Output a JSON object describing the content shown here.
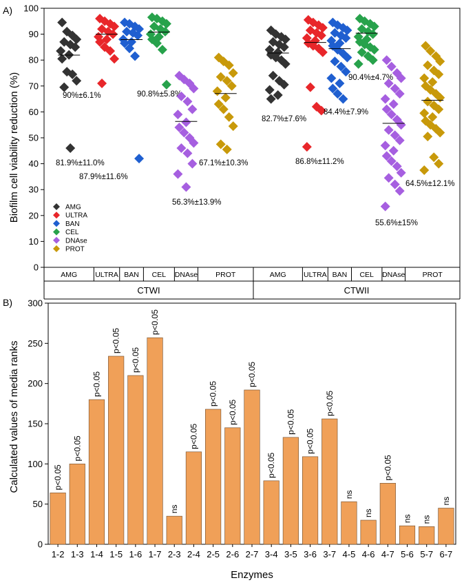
{
  "chart_data": [
    {
      "panel": "A)",
      "type": "scatter",
      "ylabel": "Biofilm cell viability reduction (%)",
      "ylim": [
        0,
        100
      ],
      "yticks": [
        0,
        10,
        20,
        30,
        40,
        50,
        60,
        70,
        80,
        90,
        100
      ],
      "legend": {
        "position": "bottom-left",
        "entries": [
          {
            "name": "AMG",
            "color": "#333333"
          },
          {
            "name": "ULTRA",
            "color": "#e8262a"
          },
          {
            "name": "BAN",
            "color": "#1f5fd0"
          },
          {
            "name": "CEL",
            "color": "#27a24b"
          },
          {
            "name": "DNAse",
            "color": "#a65fe0"
          },
          {
            "name": "PROT",
            "color": "#c8990a"
          }
        ]
      },
      "groups": [
        {
          "name": "CTWI",
          "categories": [
            {
              "label": "AMG",
              "color": "#333333",
              "mean": 81.9,
              "annotation": "81.9%±11.0%",
              "values": [
                94.5,
                91,
                89.5,
                88,
                87,
                86,
                85,
                83.5,
                82,
                80.5,
                75.5,
                74.5,
                72,
                69.5,
                46
              ]
            },
            {
              "label": "ULTRA",
              "color": "#e8262a",
              "mean": 90,
              "annotation": "90%±6.1%",
              "values": [
                96,
                95,
                94,
                93,
                92,
                91,
                90,
                89,
                88,
                87,
                85,
                83.5,
                80.5,
                71
              ]
            },
            {
              "label": "BAN",
              "color": "#1f5fd0",
              "mean": 87.9,
              "annotation": "87.9%±11.6%",
              "values": [
                94.5,
                94,
                93,
                92,
                91,
                90.5,
                89.5,
                88,
                87,
                86.5,
                84.5,
                81.5,
                42
              ]
            },
            {
              "label": "CEL",
              "color": "#27a24b",
              "mean": 90.8,
              "annotation": "90.8%±5.8%",
              "values": [
                96.5,
                96,
                95,
                94,
                93,
                92,
                91,
                90,
                89,
                88,
                86.5,
                84,
                70.5
              ]
            },
            {
              "label": "DNAse",
              "color": "#a65fe0",
              "mean": 56.3,
              "annotation": "56.3%±13.9%",
              "values": [
                74,
                72.5,
                71,
                69,
                66,
                64,
                61,
                59,
                56,
                54,
                52,
                50,
                48,
                46,
                44,
                40,
                36,
                31
              ]
            },
            {
              "label": "PROT",
              "color": "#c8990a",
              "mean": 67.1,
              "annotation": "67.1%±10.3%",
              "values": [
                81,
                79.5,
                78,
                75,
                73.5,
                72,
                70,
                68,
                65.5,
                63,
                61,
                58,
                54.5,
                47.5,
                45.5
              ]
            }
          ]
        },
        {
          "name": "CTWII",
          "categories": [
            {
              "label": "AMG",
              "color": "#333333",
              "mean": 82.7,
              "annotation": "82.7%±7.6%",
              "values": [
                91.5,
                90,
                89,
                88,
                87,
                86,
                85,
                84,
                83,
                82,
                81,
                80,
                78.5,
                74,
                72,
                70.5,
                68.5,
                66.5,
                65
              ]
            },
            {
              "label": "ULTRA",
              "color": "#e8262a",
              "mean": 86.8,
              "annotation": "86.8%±11.2%",
              "values": [
                95.5,
                94.5,
                93.5,
                92.5,
                91.5,
                90.5,
                89.5,
                88.5,
                87.5,
                86.5,
                85.5,
                84.5,
                83,
                69.5,
                62,
                60.5,
                46.5
              ]
            },
            {
              "label": "BAN",
              "color": "#1f5fd0",
              "mean": 84.4,
              "annotation": "84.4%±7.9%",
              "values": [
                94.5,
                93.5,
                92.5,
                91.5,
                90.5,
                89.5,
                88.5,
                87.5,
                86.5,
                85.5,
                84,
                82.5,
                81,
                79.5,
                77.5,
                75.5,
                73,
                71,
                69,
                67,
                65
              ]
            },
            {
              "label": "CEL",
              "color": "#27a24b",
              "mean": 90.4,
              "annotation": "90.4%±4.7%",
              "values": [
                96,
                95,
                94,
                93,
                92,
                91,
                90,
                89,
                88,
                87,
                86,
                85,
                84,
                83,
                81.5,
                80,
                78.5
              ]
            },
            {
              "label": "DNAse",
              "color": "#a65fe0",
              "mean": 55.6,
              "annotation": "55.6%±15%",
              "values": [
                80,
                77.5,
                75,
                73,
                71,
                69,
                67,
                65,
                63,
                61,
                59,
                57,
                55,
                53,
                51,
                49,
                47,
                45,
                43,
                41,
                39,
                36.5,
                34.5,
                32,
                29.5,
                23.5
              ]
            },
            {
              "label": "PROT",
              "color": "#c8990a",
              "mean": 64.5,
              "annotation": "64.5%±12.1%",
              "values": [
                85.5,
                83.5,
                81.5,
                79.5,
                78,
                76,
                74.5,
                73,
                71.5,
                70,
                68.5,
                67,
                65.5,
                64,
                62.5,
                61,
                59.5,
                58,
                56.5,
                55,
                53.5,
                52,
                50.5,
                42.5,
                40,
                37.5
              ]
            }
          ]
        }
      ]
    },
    {
      "panel": "B)",
      "type": "bar",
      "xlabel": "Enzymes",
      "ylabel": "Calculated values of media ranks",
      "ylim": [
        0,
        300
      ],
      "yticks": [
        0,
        50,
        100,
        150,
        200,
        250,
        300
      ],
      "color": "#f0a058",
      "categories": [
        "1-2",
        "1-3",
        "1-4",
        "1-5",
        "1-6",
        "1-7",
        "2-3",
        "2-4",
        "2-5",
        "2-6",
        "2-7",
        "3-4",
        "3-5",
        "3-6",
        "3-7",
        "4-5",
        "4-6",
        "4-7",
        "5-6",
        "5-7",
        "6-7"
      ],
      "values": [
        64,
        100,
        180,
        234,
        210,
        257,
        35,
        115,
        168,
        145,
        192,
        79,
        133,
        109,
        156,
        53,
        30,
        76,
        23,
        22,
        45
      ],
      "labels": [
        "p<0.05",
        "p<0.05",
        "p<0.05",
        "p<0.05",
        "p<0.05",
        "p<0.05",
        "ns",
        "p<0.05",
        "p<0.05",
        "p<0.05",
        "p<0.05",
        "p<0.05",
        "p<0.05",
        "p<0.05",
        "p<0.05",
        "ns",
        "ns",
        "p<0.05",
        "ns",
        "ns",
        "ns"
      ]
    }
  ]
}
